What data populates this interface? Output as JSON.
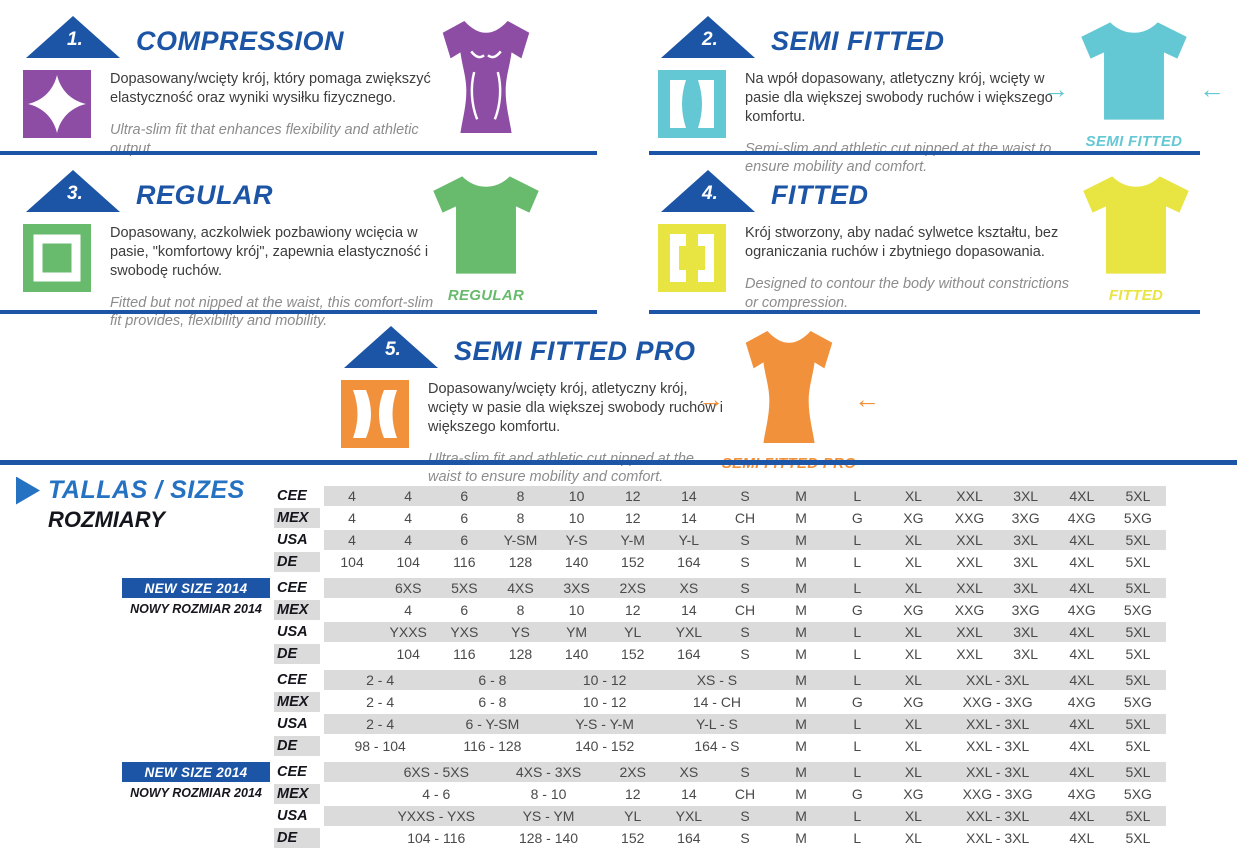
{
  "colors": {
    "brand_blue": "#1C55A5",
    "table_title_blue": "#2672C2",
    "dark_navy": "#15151D",
    "stripe_gray": "#DBDBDB",
    "polish_text": "#3C3C3C",
    "english_text": "#8C8C8C"
  },
  "icons": {
    "arrow_left": "←",
    "arrow_right": "→",
    "list_arrow": "▶"
  },
  "fits": [
    {
      "number": "1.",
      "title": "COMPRESSION",
      "color": "#8E4DA5",
      "pl": "Dopasowany/wcięty krój, który pomaga zwiększyć elastyczność oraz wyniki wysiłku fizycznego.",
      "en": "Ultra-slim fit that enhances flexibility and athletic output.",
      "shirt_label": ""
    },
    {
      "number": "2.",
      "title": "SEMI FITTED",
      "color": "#64C8D4",
      "pl": "Na wpół dopasowany, atletyczny krój, wcięty w pasie dla większej swobody ruchów i większego komfortu.",
      "en": "Semi-slim and athletic cut nipped at the waist to ensure mobility and comfort.",
      "shirt_label": "SEMI FITTED"
    },
    {
      "number": "3.",
      "title": "REGULAR",
      "color": "#68BA6C",
      "pl": "Dopasowany, aczkolwiek pozbawiony wcięcia w pasie, \"komfortowy krój\", zapewnia elastyczność i swobodę ruchów.",
      "en": "Fitted but not nipped at the waist, this comfort-slim fit provides, flexibility and mobility.",
      "shirt_label": "REGULAR"
    },
    {
      "number": "4.",
      "title": "FITTED",
      "color": "#E8E441",
      "pl": "Krój stworzony, aby nadać sylwetce kształtu, bez ograniczania ruchów i zbytniego dopasowania.",
      "en": "Designed to contour the body without constrictions or compression.",
      "shirt_label": "FITTED"
    },
    {
      "number": "5.",
      "title": "SEMI FITTED PRO",
      "color": "#F2913B",
      "pl": "Dopasowany/wcięty krój, atletyczny krój, wcięty w pasie dla większej swobody ruchów i większego komfortu.",
      "en": "Ultra-slim fit and athletic cut nipped at the waist to ensure mobility and comfort.",
      "shirt_label": "SEMI FITTED PRO"
    }
  ],
  "size_table": {
    "title": "TALLAS / SIZES",
    "subtitle": "ROZMIARY",
    "new_size_en": "NEW SIZE 2014",
    "new_size_pl": "NOWY ROZMIAR 2014",
    "new_size_bg": "#1C55A5",
    "blocks": [
      {
        "new_size": false,
        "rows": [
          {
            "label": "CEE",
            "cells": [
              [
                "4",
                1
              ],
              [
                "4",
                1
              ],
              [
                "6",
                1
              ],
              [
                "8",
                1
              ],
              [
                "10",
                1
              ],
              [
                "12",
                1
              ],
              [
                "14",
                1
              ],
              [
                "S",
                1
              ],
              [
                "M",
                1
              ],
              [
                "L",
                1
              ],
              [
                "XL",
                1
              ],
              [
                "XXL",
                1
              ],
              [
                "3XL",
                1
              ],
              [
                "4XL",
                1
              ],
              [
                "5XL",
                1
              ]
            ]
          },
          {
            "label": "MEX",
            "cells": [
              [
                "4",
                1
              ],
              [
                "4",
                1
              ],
              [
                "6",
                1
              ],
              [
                "8",
                1
              ],
              [
                "10",
                1
              ],
              [
                "12",
                1
              ],
              [
                "14",
                1
              ],
              [
                "CH",
                1
              ],
              [
                "M",
                1
              ],
              [
                "G",
                1
              ],
              [
                "XG",
                1
              ],
              [
                "XXG",
                1
              ],
              [
                "3XG",
                1
              ],
              [
                "4XG",
                1
              ],
              [
                "5XG",
                1
              ]
            ]
          },
          {
            "label": "USA",
            "cells": [
              [
                "4",
                1
              ],
              [
                "4",
                1
              ],
              [
                "6",
                1
              ],
              [
                "Y-SM",
                1
              ],
              [
                "Y-S",
                1
              ],
              [
                "Y-M",
                1
              ],
              [
                "Y-L",
                1
              ],
              [
                "S",
                1
              ],
              [
                "M",
                1
              ],
              [
                "L",
                1
              ],
              [
                "XL",
                1
              ],
              [
                "XXL",
                1
              ],
              [
                "3XL",
                1
              ],
              [
                "4XL",
                1
              ],
              [
                "5XL",
                1
              ]
            ]
          },
          {
            "label": "DE",
            "cells": [
              [
                "104",
                1
              ],
              [
                "104",
                1
              ],
              [
                "116",
                1
              ],
              [
                "128",
                1
              ],
              [
                "140",
                1
              ],
              [
                "152",
                1
              ],
              [
                "164",
                1
              ],
              [
                "S",
                1
              ],
              [
                "M",
                1
              ],
              [
                "L",
                1
              ],
              [
                "XL",
                1
              ],
              [
                "XXL",
                1
              ],
              [
                "3XL",
                1
              ],
              [
                "4XL",
                1
              ],
              [
                "5XL",
                1
              ]
            ]
          }
        ]
      },
      {
        "new_size": true,
        "rows": [
          {
            "label": "CEE",
            "cells": [
              [
                "",
                1
              ],
              [
                "6XS",
                1
              ],
              [
                "5XS",
                1
              ],
              [
                "4XS",
                1
              ],
              [
                "3XS",
                1
              ],
              [
                "2XS",
                1
              ],
              [
                "XS",
                1
              ],
              [
                "S",
                1
              ],
              [
                "M",
                1
              ],
              [
                "L",
                1
              ],
              [
                "XL",
                1
              ],
              [
                "XXL",
                1
              ],
              [
                "3XL",
                1
              ],
              [
                "4XL",
                1
              ],
              [
                "5XL",
                1
              ]
            ]
          },
          {
            "label": "MEX",
            "cells": [
              [
                "",
                1
              ],
              [
                "4",
                1
              ],
              [
                "6",
                1
              ],
              [
                "8",
                1
              ],
              [
                "10",
                1
              ],
              [
                "12",
                1
              ],
              [
                "14",
                1
              ],
              [
                "CH",
                1
              ],
              [
                "M",
                1
              ],
              [
                "G",
                1
              ],
              [
                "XG",
                1
              ],
              [
                "XXG",
                1
              ],
              [
                "3XG",
                1
              ],
              [
                "4XG",
                1
              ],
              [
                "5XG",
                1
              ]
            ]
          },
          {
            "label": "USA",
            "cells": [
              [
                "",
                1
              ],
              [
                "YXXS",
                1
              ],
              [
                "YXS",
                1
              ],
              [
                "YS",
                1
              ],
              [
                "YM",
                1
              ],
              [
                "YL",
                1
              ],
              [
                "YXL",
                1
              ],
              [
                "S",
                1
              ],
              [
                "M",
                1
              ],
              [
                "L",
                1
              ],
              [
                "XL",
                1
              ],
              [
                "XXL",
                1
              ],
              [
                "3XL",
                1
              ],
              [
                "4XL",
                1
              ],
              [
                "5XL",
                1
              ]
            ]
          },
          {
            "label": "DE",
            "cells": [
              [
                "",
                1
              ],
              [
                "104",
                1
              ],
              [
                "116",
                1
              ],
              [
                "128",
                1
              ],
              [
                "140",
                1
              ],
              [
                "152",
                1
              ],
              [
                "164",
                1
              ],
              [
                "S",
                1
              ],
              [
                "M",
                1
              ],
              [
                "L",
                1
              ],
              [
                "XL",
                1
              ],
              [
                "XXL",
                1
              ],
              [
                "3XL",
                1
              ],
              [
                "4XL",
                1
              ],
              [
                "5XL",
                1
              ]
            ]
          }
        ]
      },
      {
        "new_size": false,
        "rows": [
          {
            "label": "CEE",
            "cells": [
              [
                "2 - 4",
                2
              ],
              [
                "6 - 8",
                2
              ],
              [
                "10 - 12",
                2
              ],
              [
                "XS - S",
                2
              ],
              [
                "M",
                1
              ],
              [
                "L",
                1
              ],
              [
                "XL",
                1
              ],
              [
                "XXL - 3XL",
                2
              ],
              [
                "4XL",
                1
              ],
              [
                "5XL",
                1
              ]
            ]
          },
          {
            "label": "MEX",
            "cells": [
              [
                "2 - 4",
                2
              ],
              [
                "6 - 8",
                2
              ],
              [
                "10 - 12",
                2
              ],
              [
                "14 - CH",
                2
              ],
              [
                "M",
                1
              ],
              [
                "G",
                1
              ],
              [
                "XG",
                1
              ],
              [
                "XXG - 3XG",
                2
              ],
              [
                "4XG",
                1
              ],
              [
                "5XG",
                1
              ]
            ]
          },
          {
            "label": "USA",
            "cells": [
              [
                "2 - 4",
                2
              ],
              [
                "6 - Y-SM",
                2
              ],
              [
                "Y-S - Y-M",
                2
              ],
              [
                "Y-L - S",
                2
              ],
              [
                "M",
                1
              ],
              [
                "L",
                1
              ],
              [
                "XL",
                1
              ],
              [
                "XXL - 3XL",
                2
              ],
              [
                "4XL",
                1
              ],
              [
                "5XL",
                1
              ]
            ]
          },
          {
            "label": "DE",
            "cells": [
              [
                "98 - 104",
                2
              ],
              [
                "116 - 128",
                2
              ],
              [
                "140 - 152",
                2
              ],
              [
                "164 - S",
                2
              ],
              [
                "M",
                1
              ],
              [
                "L",
                1
              ],
              [
                "XL",
                1
              ],
              [
                "XXL - 3XL",
                2
              ],
              [
                "4XL",
                1
              ],
              [
                "5XL",
                1
              ]
            ]
          }
        ]
      },
      {
        "new_size": true,
        "rows": [
          {
            "label": "CEE",
            "cells": [
              [
                "",
                1
              ],
              [
                "6XS - 5XS",
                2
              ],
              [
                "4XS - 3XS",
                2
              ],
              [
                "2XS",
                1
              ],
              [
                "XS",
                1
              ],
              [
                "S",
                1
              ],
              [
                "M",
                1
              ],
              [
                "L",
                1
              ],
              [
                "XL",
                1
              ],
              [
                "XXL - 3XL",
                2
              ],
              [
                "4XL",
                1
              ],
              [
                "5XL",
                1
              ]
            ]
          },
          {
            "label": "MEX",
            "cells": [
              [
                "",
                1
              ],
              [
                "4 - 6",
                2
              ],
              [
                "8 - 10",
                2
              ],
              [
                "12",
                1
              ],
              [
                "14",
                1
              ],
              [
                "CH",
                1
              ],
              [
                "M",
                1
              ],
              [
                "G",
                1
              ],
              [
                "XG",
                1
              ],
              [
                "XXG - 3XG",
                2
              ],
              [
                "4XG",
                1
              ],
              [
                "5XG",
                1
              ]
            ]
          },
          {
            "label": "USA",
            "cells": [
              [
                "",
                1
              ],
              [
                "YXXS - YXS",
                2
              ],
              [
                "YS - YM",
                2
              ],
              [
                "YL",
                1
              ],
              [
                "YXL",
                1
              ],
              [
                "S",
                1
              ],
              [
                "M",
                1
              ],
              [
                "L",
                1
              ],
              [
                "XL",
                1
              ],
              [
                "XXL - 3XL",
                2
              ],
              [
                "4XL",
                1
              ],
              [
                "5XL",
                1
              ]
            ]
          },
          {
            "label": "DE",
            "cells": [
              [
                "",
                1
              ],
              [
                "104 - 116",
                2
              ],
              [
                "128 - 140",
                2
              ],
              [
                "152",
                1
              ],
              [
                "164",
                1
              ],
              [
                "S",
                1
              ],
              [
                "M",
                1
              ],
              [
                "L",
                1
              ],
              [
                "XL",
                1
              ],
              [
                "XXL - 3XL",
                2
              ],
              [
                "4XL",
                1
              ],
              [
                "5XL",
                1
              ]
            ]
          }
        ]
      }
    ]
  }
}
